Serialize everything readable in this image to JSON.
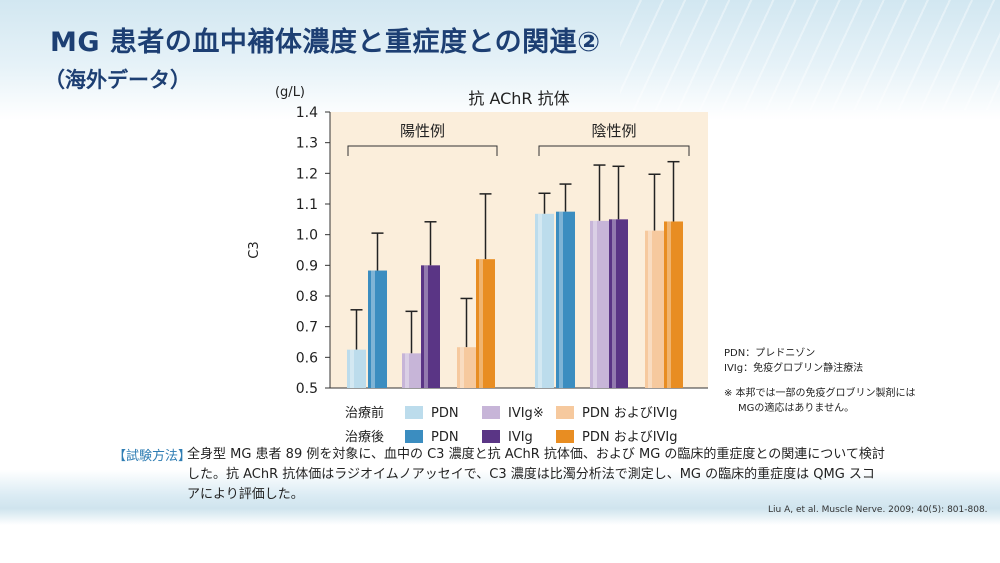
{
  "title": "MG 患者の血中補体濃度と重症度との関連②",
  "subtitle": "（海外データ）",
  "chart_data": {
    "type": "bar",
    "title": "抗 AChR 抗体",
    "ylabel": "C3",
    "yunit": "(g/L)",
    "ylim": [
      0.5,
      1.4
    ],
    "yticks": [
      "0.5",
      "0.6",
      "0.7",
      "0.8",
      "0.9",
      "1.0",
      "1.1",
      "1.2",
      "1.3",
      "1.4"
    ],
    "groups": [
      {
        "label": "陽性例",
        "bars": [
          {
            "series": "pdn_pre",
            "value": 0.625,
            "err": 0.755
          },
          {
            "series": "pdn_post",
            "value": 0.883,
            "err": 1.005
          },
          {
            "series": "ivig_pre",
            "value": 0.613,
            "err": 0.75
          },
          {
            "series": "ivig_post",
            "value": 0.9,
            "err": 1.042
          },
          {
            "series": "both_pre",
            "value": 0.633,
            "err": 0.792
          },
          {
            "series": "both_post",
            "value": 0.92,
            "err": 1.133
          }
        ]
      },
      {
        "label": "陰性例",
        "bars": [
          {
            "series": "pdn_pre",
            "value": 1.068,
            "err": 1.135
          },
          {
            "series": "pdn_post",
            "value": 1.075,
            "err": 1.165
          },
          {
            "series": "ivig_pre",
            "value": 1.045,
            "err": 1.227
          },
          {
            "series": "ivig_post",
            "value": 1.05,
            "err": 1.223
          },
          {
            "series": "both_pre",
            "value": 1.013,
            "err": 1.197
          },
          {
            "series": "both_post",
            "value": 1.043,
            "err": 1.238
          }
        ]
      }
    ],
    "series": [
      {
        "key": "pdn_pre",
        "name": "PDN",
        "color": "#bcdcec"
      },
      {
        "key": "pdn_post",
        "name": "PDN",
        "color": "#3b8dc0"
      },
      {
        "key": "ivig_pre",
        "name": "IVIg※",
        "color": "#c7b5d8"
      },
      {
        "key": "ivig_post",
        "name": "IVIg",
        "color": "#5a3585"
      },
      {
        "key": "both_pre",
        "name": "PDN およびIVIg",
        "color": "#f6c99e"
      },
      {
        "key": "both_post",
        "name": "PDN およびIVIg",
        "color": "#e88d22"
      }
    ],
    "legend": {
      "rows": [
        {
          "label": "治療前",
          "items": [
            {
              "text": "PDN",
              "color": "#bcdcec"
            },
            {
              "text": "IVIg※",
              "color": "#c7b5d8"
            },
            {
              "text": "PDN およびIVIg",
              "color": "#f6c99e"
            }
          ]
        },
        {
          "label": "治療後",
          "items": [
            {
              "text": "PDN",
              "color": "#3b8dc0"
            },
            {
              "text": "IVIg",
              "color": "#5a3585"
            },
            {
              "text": "PDN およびIVIg",
              "color": "#e88d22"
            }
          ]
        }
      ]
    },
    "plot_background": "#fbeedb"
  },
  "notes": {
    "line1": "PDN：プレドニゾン",
    "line2": "IVIg：免疫グロブリン静注療法",
    "line3": "※ 本邦では一部の免疫グロブリン製剤には",
    "line4": "MGの適応はありません。"
  },
  "method": {
    "label": "【試験方法】",
    "text": "全身型 MG 患者 89 例を対象に、血中の C3 濃度と抗 AChR 抗体価、および MG の臨床的重症度との関連について検討した。抗 AChR 抗体価はラジオイムノアッセイで、C3 濃度は比濁分析法で測定し、MG の臨床的重症度は QMG スコアにより評価した。"
  },
  "citation": "Liu A, et al. Muscle Nerve. 2009; 40(5): 801-808."
}
